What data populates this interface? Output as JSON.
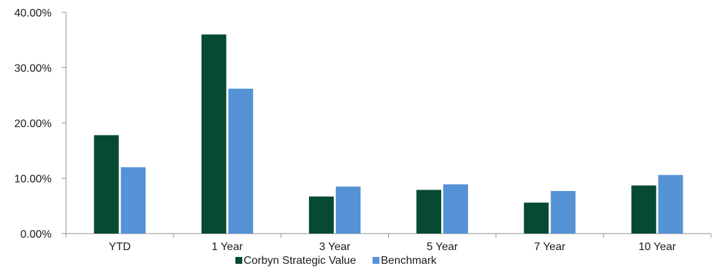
{
  "chart_data": {
    "type": "bar",
    "categories": [
      "YTD",
      "1 Year",
      "3 Year",
      "5 Year",
      "7 Year",
      "10 Year"
    ],
    "series": [
      {
        "name": "Corbyn Strategic Value",
        "color": "#064a31",
        "values": [
          17.8,
          36.0,
          6.7,
          7.9,
          5.6,
          8.7
        ]
      },
      {
        "name": "Benchmark",
        "color": "#5592d6",
        "values": [
          12.0,
          26.2,
          8.5,
          8.9,
          7.7,
          10.6
        ]
      }
    ],
    "y_ticks": [
      "0.00%",
      "10.00%",
      "20.00%",
      "30.00%",
      "40.00%"
    ],
    "ylim": [
      0,
      40
    ],
    "grid": false,
    "legend_position": "bottom"
  }
}
